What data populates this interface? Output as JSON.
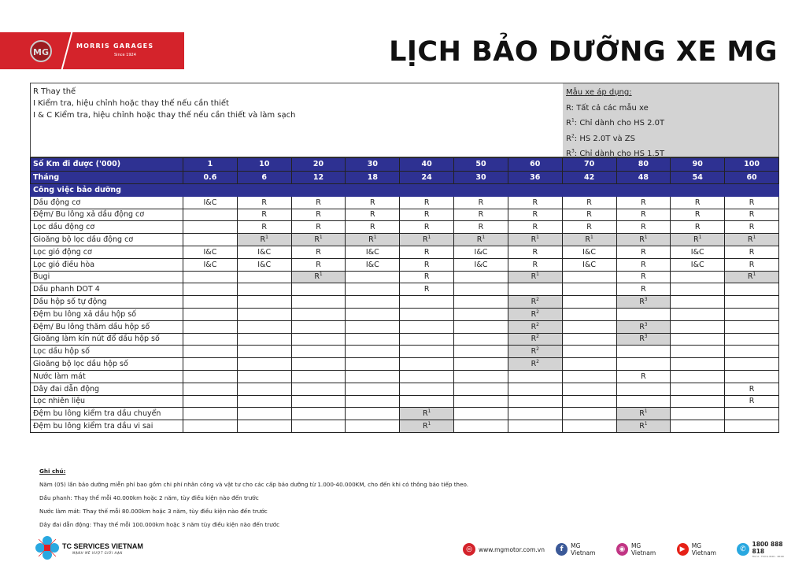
{
  "brand": {
    "name": "MORRIS GARAGES",
    "since": "Since 1924",
    "badge": "MG"
  },
  "title": "LỊCH BẢO DƯỠNG XE MG",
  "legend": {
    "lines": [
      "R Thay thế",
      "I Kiểm tra, hiệu chỉnh hoặc thay thế nếu cần thiết",
      "I & C Kiểm tra, hiệu chỉnh hoặc thay thế nếu cần thiết và làm sạch"
    ],
    "models_heading": "Mẫu xe áp dụng:",
    "models": [
      {
        "code": "R",
        "sup": "",
        "text": ": Tất cả các mẫu xe"
      },
      {
        "code": "R",
        "sup": "1",
        "text": ": Chỉ dành cho HS 2.0T"
      },
      {
        "code": "R",
        "sup": "2",
        "text": ": HS 2.0T và ZS"
      },
      {
        "code": "R",
        "sup": "3",
        "text": ": Chỉ dành cho HS 1.5T"
      }
    ]
  },
  "table": {
    "km_label": "Số Km đi được ('000)",
    "km": [
      "1",
      "10",
      "20",
      "30",
      "40",
      "50",
      "60",
      "70",
      "80",
      "90",
      "100"
    ],
    "month_label": "Tháng",
    "months": [
      "0.6",
      "6",
      "12",
      "18",
      "24",
      "30",
      "36",
      "42",
      "48",
      "54",
      "60"
    ],
    "section": "Công việc bảo dưỡng",
    "rows": [
      {
        "task": "Dầu động cơ",
        "cells": [
          "I&C",
          "R",
          "R",
          "R",
          "R",
          "R",
          "R",
          "R",
          "R",
          "R",
          "R"
        ]
      },
      {
        "task": "Đệm/ Bu lông xả dầu động cơ",
        "cells": [
          "",
          "R",
          "R",
          "R",
          "R",
          "R",
          "R",
          "R",
          "R",
          "R",
          "R"
        ]
      },
      {
        "task": "Lọc dầu động cơ",
        "cells": [
          "",
          "R",
          "R",
          "R",
          "R",
          "R",
          "R",
          "R",
          "R",
          "R",
          "R"
        ]
      },
      {
        "task": "Gioăng bộ lọc dầu động cơ",
        "cells": [
          "",
          "R1",
          "R1",
          "R1",
          "R1",
          "R1",
          "R1",
          "R1",
          "R1",
          "R1",
          "R1"
        ]
      },
      {
        "task": "Lọc gió động cơ",
        "cells": [
          "I&C",
          "I&C",
          "R",
          "I&C",
          "R",
          "I&C",
          "R",
          "I&C",
          "R",
          "I&C",
          "R"
        ]
      },
      {
        "task": "Lọc gió điều hòa",
        "cells": [
          "I&C",
          "I&C",
          "R",
          "I&C",
          "R",
          "I&C",
          "R",
          "I&C",
          "R",
          "I&C",
          "R"
        ]
      },
      {
        "task": "Bugi",
        "cells": [
          "",
          "",
          "R1",
          "",
          "R",
          "",
          "R1",
          "",
          "R",
          "",
          "R1"
        ]
      },
      {
        "task": "Dầu phanh DOT 4",
        "cells": [
          "",
          "",
          "",
          "",
          "R",
          "",
          "",
          "",
          "R",
          "",
          ""
        ]
      },
      {
        "task": "Dầu hộp số tự động",
        "cells": [
          "",
          "",
          "",
          "",
          "",
          "",
          "R2",
          "",
          "R3",
          "",
          ""
        ]
      },
      {
        "task": "Đệm bu lông xả dầu hộp số",
        "cells": [
          "",
          "",
          "",
          "",
          "",
          "",
          "R2",
          "",
          "",
          "",
          ""
        ]
      },
      {
        "task": "Đệm/ Bu lông thăm dầu hộp số",
        "cells": [
          "",
          "",
          "",
          "",
          "",
          "",
          "R2",
          "",
          "R3",
          "",
          ""
        ]
      },
      {
        "task": "Gioăng làm kín nút đổ dầu hộp số",
        "cells": [
          "",
          "",
          "",
          "",
          "",
          "",
          "R2",
          "",
          "R3",
          "",
          ""
        ]
      },
      {
        "task": "Lọc dầu hộp số",
        "cells": [
          "",
          "",
          "",
          "",
          "",
          "",
          "R2",
          "",
          "",
          "",
          ""
        ]
      },
      {
        "task": "Gioăng bộ lọc dầu hộp số",
        "cells": [
          "",
          "",
          "",
          "",
          "",
          "",
          "R2",
          "",
          "",
          "",
          ""
        ]
      },
      {
        "task": "Nước làm mát",
        "cells": [
          "",
          "",
          "",
          "",
          "",
          "",
          "",
          "",
          "R",
          "",
          ""
        ]
      },
      {
        "task": "Dây đai dẫn động",
        "cells": [
          "",
          "",
          "",
          "",
          "",
          "",
          "",
          "",
          "",
          "",
          "R"
        ]
      },
      {
        "task": "Lọc nhiên liệu",
        "cells": [
          "",
          "",
          "",
          "",
          "",
          "",
          "",
          "",
          "",
          "",
          "R"
        ]
      },
      {
        "task": "Đệm bu lông kiểm tra dầu chuyển",
        "cells": [
          "",
          "",
          "",
          "",
          "R1",
          "",
          "",
          "",
          "R1",
          "",
          ""
        ]
      },
      {
        "task": "Đệm bu lông kiểm tra dầu vi sai",
        "cells": [
          "",
          "",
          "",
          "",
          "R1",
          "",
          "",
          "",
          "R1",
          "",
          ""
        ]
      }
    ]
  },
  "notes": {
    "heading": "Ghi chú:",
    "lines": [
      "Năm (05) lần bảo dưỡng miễn phí bao gồm chi phí nhân công và vật tư cho các cấp bảo dưỡng từ 1.000-40.000KM, cho đến khi có thông báo tiếp theo.",
      "Dầu phanh: Thay thế mỗi 40.000km hoặc 2 năm, tùy điều kiện nào đến trước",
      "Nước làm mát: Thay thế mỗi 80.000km hoặc 3 năm, tùy điều kiện nào đến trước",
      "Dây đai dẫn động: Thay thế mỗi 100.000km hoặc 3 năm tùy điều kiện nào đến trước"
    ]
  },
  "footer": {
    "tc_name": "TC SERVICES VIETNAM",
    "tc_slogan": "MẠNH MẼ VƯỢT GIỚI HẠN",
    "website": "www.mgmotor.com.vn",
    "facebook": "MG Vietnam",
    "instagram": "MG Vietnam",
    "youtube": "MG Vietnam",
    "hotline": "1800 888 818",
    "hotline_hours": "Thứ 2 - Thứ 6, 8:00 - 18:00"
  },
  "colors": {
    "brand_red": "#d4232b",
    "header_blue": "#2e3192",
    "highlight_gray": "#d3d3d3"
  }
}
